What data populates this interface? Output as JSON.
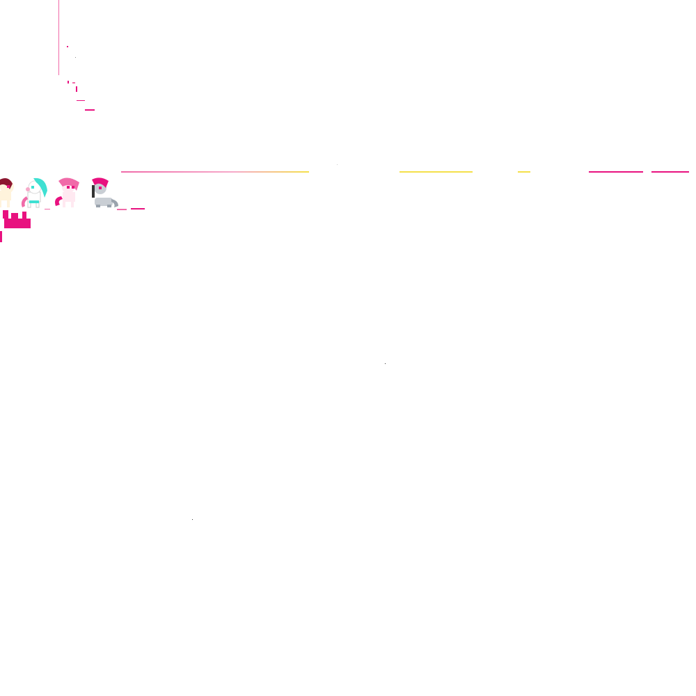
{
  "canvas": {
    "background": "#ffffff"
  },
  "palette": {
    "magenta": "#e8117f",
    "pink": "#f06aa8",
    "light_pink": "#f6a9c9",
    "yellow": "#f4e04a",
    "teal": "#3fe0d2",
    "maroon": "#8c1730",
    "grey": "#9aa3ad",
    "cream": "#fff3dc",
    "dark": "#333333"
  },
  "sprites": [
    {
      "name": "maroon-mane-pony-sprite",
      "mane": "#8c1730",
      "body": "#fff3dc",
      "tail": "#8c1730",
      "eye": "#e8117f"
    },
    {
      "name": "teal-mane-pony-sprite",
      "mane": "#3fe0d2",
      "body": "#ffffff",
      "tail": "#f06aa8",
      "eye": "#3fe0d2"
    },
    {
      "name": "pink-mane-pony-sprite",
      "mane": "#f06aa8",
      "body": "#ffe9f1",
      "tail": "#e8117f",
      "eye": "#e8117f"
    },
    {
      "name": "magenta-mane-grey-pony-sprite",
      "mane": "#e8117f",
      "body": "#c9ced4",
      "tail": "#9aa3ad",
      "eye": "#e8117f"
    }
  ]
}
